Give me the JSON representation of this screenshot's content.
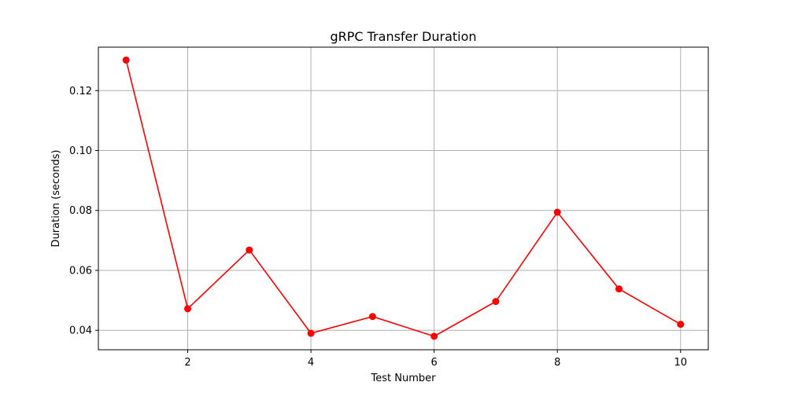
{
  "chart_data": {
    "type": "line",
    "title": "gRPC Transfer Duration",
    "xlabel": "Test Number",
    "ylabel": "Duration (seconds)",
    "x": [
      1,
      2,
      3,
      4,
      5,
      6,
      7,
      8,
      9,
      10
    ],
    "series": [
      {
        "values": [
          0.1302,
          0.0472,
          0.0668,
          0.039,
          0.0446,
          0.038,
          0.0496,
          0.0794,
          0.0538,
          0.042
        ],
        "color": "#ff0000",
        "marker": "circle"
      }
    ],
    "xlim": [
      0.55,
      10.45
    ],
    "ylim": [
      0.0335,
      0.1345
    ],
    "xticks": [
      2,
      4,
      6,
      8,
      10
    ],
    "xtick_labels": [
      "2",
      "4",
      "6",
      "8",
      "10"
    ],
    "yticks": [
      0.04,
      0.06,
      0.08,
      0.1,
      0.12
    ],
    "ytick_labels": [
      "0.04",
      "0.06",
      "0.08",
      "0.10",
      "0.12"
    ],
    "grid": true,
    "legend": false
  }
}
